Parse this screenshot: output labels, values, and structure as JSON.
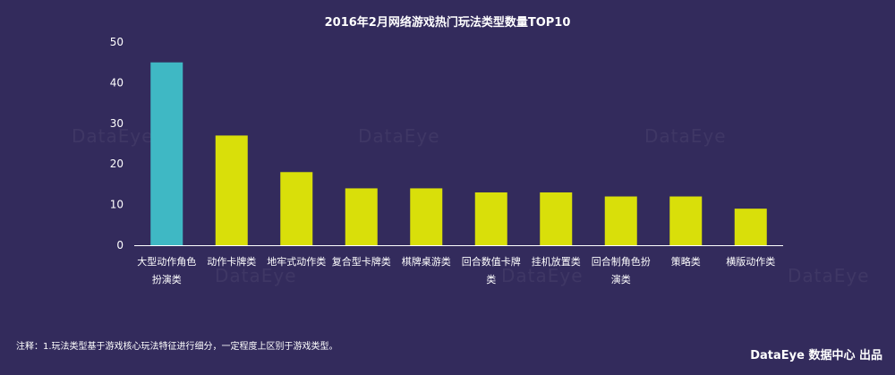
{
  "chart_data": {
    "type": "bar",
    "title": "2016年2月网络游戏热门玩法类型数量TOP10",
    "categories": [
      [
        "大型动作角色",
        "扮演类"
      ],
      [
        "动作卡牌类"
      ],
      [
        "地牢式动作类"
      ],
      [
        "复合型卡牌类"
      ],
      [
        "棋牌桌游类"
      ],
      [
        "回合数值卡牌",
        "类"
      ],
      [
        "挂机放置类"
      ],
      [
        "回合制角色扮",
        "演类"
      ],
      [
        "策略类"
      ],
      [
        "横版动作类"
      ]
    ],
    "values": [
      45,
      27,
      18,
      14,
      14,
      13,
      13,
      12,
      12,
      9
    ],
    "ylim": [
      0,
      50
    ],
    "yticks": [
      0,
      10,
      20,
      30,
      40,
      50
    ],
    "colors": {
      "first_bar": "#3fb8c4",
      "bar": "#d9df0a",
      "axis": "#ffffff"
    }
  },
  "note": "注释：1.玩法类型基于游戏核心玩法特征进行细分，一定程度上区别于游戏类型。",
  "brand": "DataEye 数据中心 出品",
  "watermark": "DataEye"
}
